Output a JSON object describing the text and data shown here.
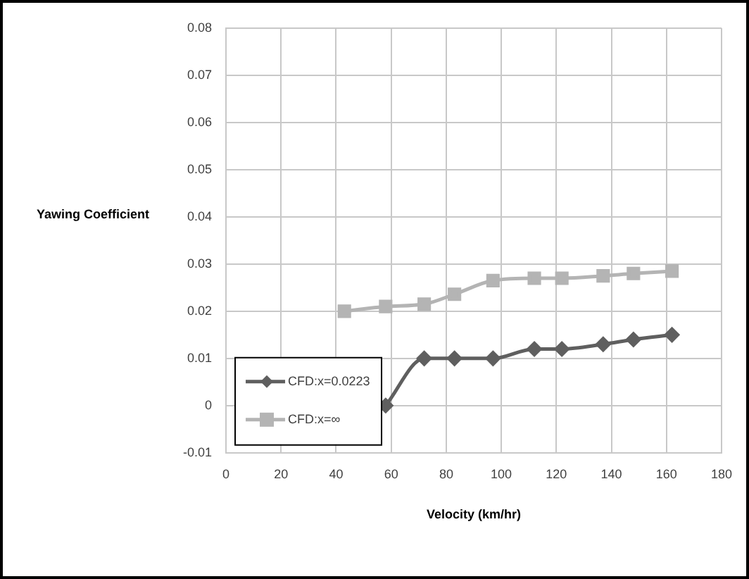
{
  "chart_data": {
    "type": "line",
    "xlabel": "Velocity (km/hr)",
    "ylabel": "Yawing Coefficient",
    "xlim": [
      0,
      180
    ],
    "xticks": [
      0,
      20,
      40,
      60,
      80,
      100,
      120,
      140,
      160,
      180
    ],
    "ylim": [
      -0.01,
      0.08
    ],
    "yticks": [
      -0.01,
      0,
      0.01,
      0.02,
      0.03,
      0.04,
      0.05,
      0.06,
      0.07,
      0.08
    ],
    "grid": true,
    "legend": "bottom left",
    "series": [
      {
        "name": "CFD:x=0.0223",
        "color": "#5f5f5f",
        "marker": "diamond",
        "x": [
          58,
          72,
          83,
          97,
          112,
          122,
          137,
          148,
          162
        ],
        "values": [
          0,
          0.01,
          0.01,
          0.01,
          0.012,
          0.012,
          0.013,
          0.014,
          0.015
        ]
      },
      {
        "name": "CFD:x=∞",
        "color": "#b4b4b4",
        "marker": "square",
        "x": [
          43,
          58,
          72,
          83,
          97,
          112,
          122,
          137,
          148,
          162
        ],
        "values": [
          0.02,
          0.021,
          0.0215,
          0.0236,
          0.0265,
          0.027,
          0.027,
          0.0275,
          0.028,
          0.0285
        ]
      }
    ]
  }
}
